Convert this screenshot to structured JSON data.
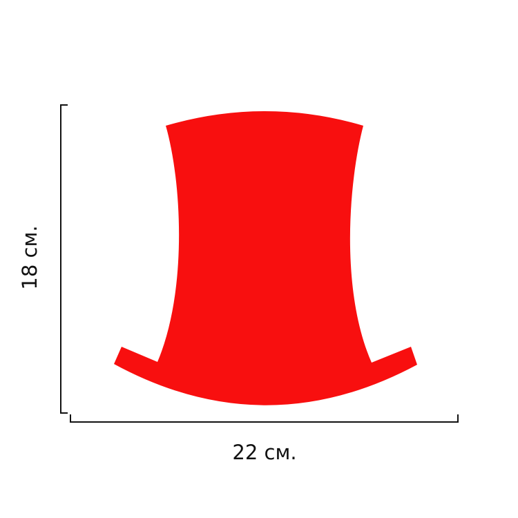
{
  "shape": {
    "fill": "#f80f0f",
    "description_label": ""
  },
  "dimensions": {
    "width_label": "22 см.",
    "height_label": "18 см."
  },
  "colors": {
    "line": "#111111",
    "shape": "#f80f0f"
  }
}
